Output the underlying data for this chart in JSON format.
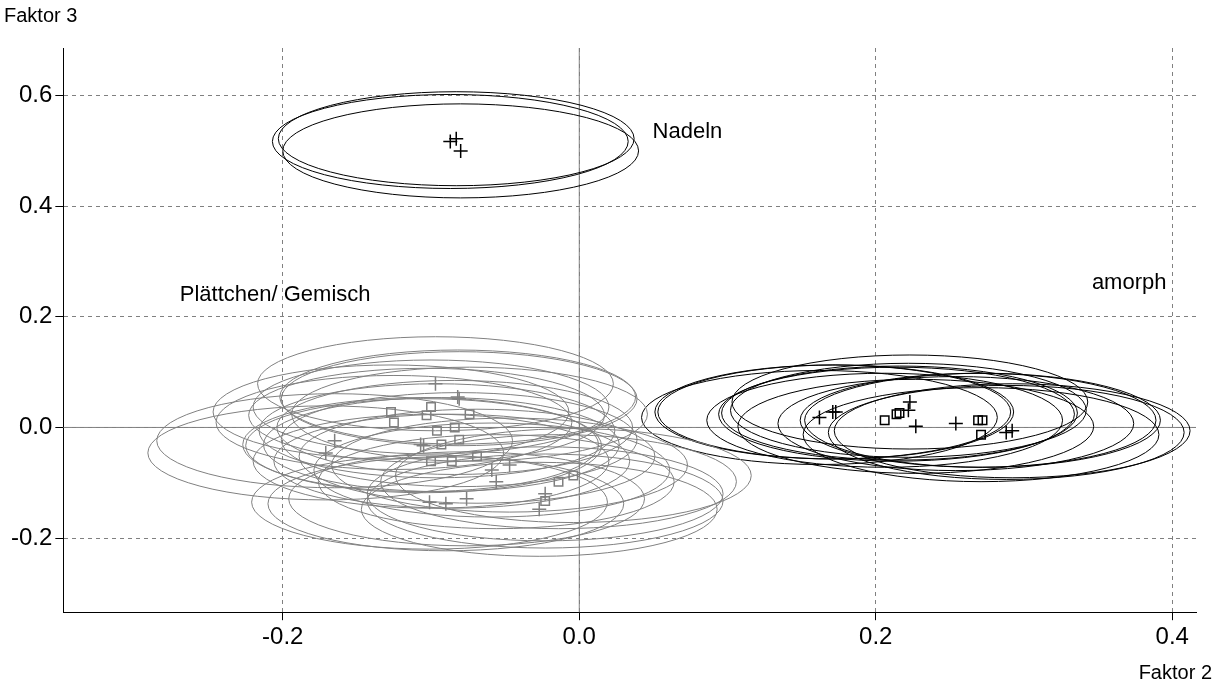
{
  "chart_data": {
    "type": "scatter",
    "xlabel": "Faktor 2",
    "ylabel": "Faktor 3",
    "xlim": [
      -0.348,
      0.416
    ],
    "ylim": [
      -0.334,
      0.686
    ],
    "xticks": [
      -0.2,
      {
        "value": 0,
        "label": "0.0"
      },
      0.2,
      0.4
    ],
    "yticks": [
      -0.2,
      {
        "value": 0,
        "label": "0.0"
      },
      0.2,
      0.4,
      0.6
    ],
    "grid": true,
    "annotations": [
      "Nadeln",
      "Plättchen/ Gemisch",
      "amorph"
    ],
    "series": [
      {
        "color": "#000000",
        "marker": "cross",
        "x": [
          -0.087,
          -0.083,
          -0.08
        ],
        "values": [
          0.517,
          0.522,
          0.5
        ]
      },
      {
        "color": "#000000",
        "marker": "cross",
        "x": [
          0.162,
          0.171,
          0.173,
          0.223,
          0.222,
          0.227,
          0.254,
          0.288,
          0.292
        ],
        "values": [
          0.018,
          0.028,
          0.028,
          0.046,
          0.031,
          0.002,
          0.007,
          -0.009,
          -0.006
        ]
      },
      {
        "color": "#000000",
        "marker": "square",
        "x": [
          0.206,
          0.214,
          0.216,
          0.269,
          0.272,
          0.271
        ],
        "values": [
          0.013,
          0.024,
          0.026,
          0.013,
          0.013,
          -0.013
        ]
      },
      {
        "color": "#808080",
        "marker": "cross",
        "x": [
          -0.097,
          -0.082,
          -0.081,
          -0.107,
          -0.105,
          -0.171,
          -0.165,
          -0.059,
          -0.056,
          -0.047,
          -0.101,
          -0.09,
          -0.076,
          -0.027,
          -0.023
        ],
        "values": [
          0.079,
          0.055,
          0.052,
          -0.031,
          -0.033,
          -0.046,
          -0.024,
          -0.077,
          -0.098,
          -0.068,
          -0.135,
          -0.138,
          -0.129,
          -0.148,
          -0.12
        ]
      },
      {
        "color": "#808080",
        "marker": "square",
        "x": [
          -0.127,
          -0.125,
          -0.1,
          -0.103,
          -0.074,
          -0.096,
          -0.084,
          -0.081,
          -0.093,
          -0.1,
          -0.086,
          -0.069,
          -0.014,
          -0.004,
          -0.023
        ],
        "values": [
          0.028,
          0.009,
          0.037,
          0.022,
          0.024,
          -0.006,
          0.0,
          -0.022,
          -0.031,
          -0.061,
          -0.061,
          -0.052,
          -0.098,
          -0.087,
          -0.133
        ]
      }
    ]
  }
}
